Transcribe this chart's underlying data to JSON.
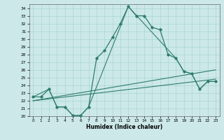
{
  "xlabel": "Humidex (Indice chaleur)",
  "bg_color": "#cce8e8",
  "line_color": "#2e7d6e",
  "grid_color": "#aad4d4",
  "xlim": [
    -0.5,
    23.5
  ],
  "ylim": [
    20,
    34.5
  ],
  "xticks": [
    0,
    1,
    2,
    3,
    4,
    5,
    6,
    7,
    8,
    9,
    10,
    11,
    12,
    13,
    14,
    15,
    16,
    17,
    18,
    19,
    20,
    21,
    22,
    23
  ],
  "yticks": [
    20,
    21,
    22,
    23,
    24,
    25,
    26,
    27,
    28,
    29,
    30,
    31,
    32,
    33,
    34
  ],
  "main_line": {
    "x": [
      0,
      1,
      2,
      3,
      4,
      5,
      6,
      7,
      8,
      9,
      10,
      11,
      12,
      13,
      14,
      15,
      16,
      17,
      18,
      19,
      20,
      21,
      22,
      23
    ],
    "y": [
      22.5,
      22.5,
      23.5,
      21.2,
      21.2,
      20.1,
      20.1,
      21.2,
      27.5,
      28.5,
      30.2,
      32.0,
      34.2,
      33.0,
      33.0,
      31.5,
      31.2,
      28.0,
      27.5,
      25.8,
      25.5,
      23.5,
      24.5,
      24.5
    ]
  },
  "line2": {
    "x": [
      0,
      2,
      3,
      4,
      5,
      6,
      7,
      12,
      18,
      19,
      20,
      21,
      22,
      23
    ],
    "y": [
      22.5,
      23.5,
      21.2,
      21.2,
      20.1,
      20.1,
      21.2,
      34.2,
      27.5,
      25.8,
      25.5,
      23.5,
      24.5,
      24.5
    ]
  },
  "line3": {
    "x": [
      0,
      23
    ],
    "y": [
      22.0,
      26.0
    ]
  },
  "line4": {
    "x": [
      0,
      23
    ],
    "y": [
      22.0,
      24.8
    ]
  }
}
